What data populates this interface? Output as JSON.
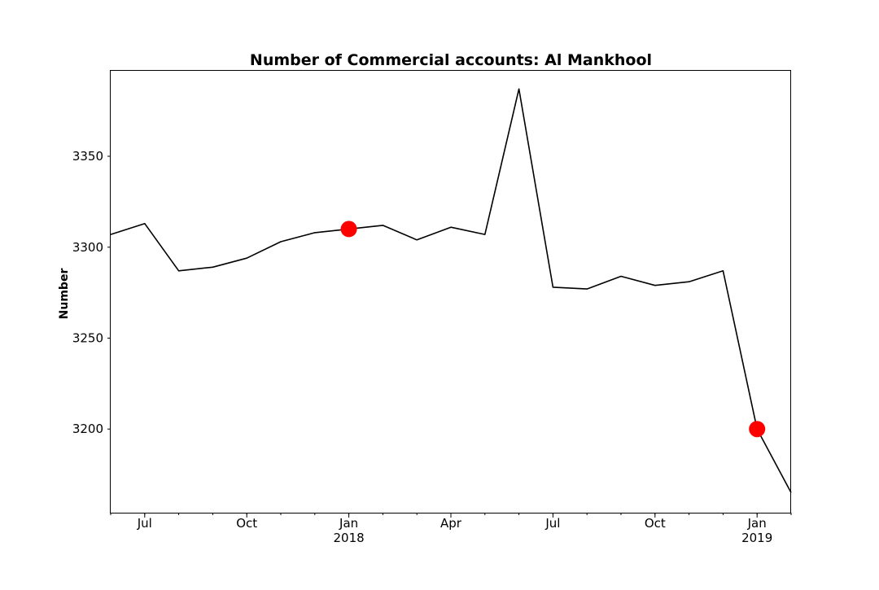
{
  "chart_data": {
    "type": "line",
    "title": "Number of Commercial accounts: Al Mankhool",
    "xlabel": "",
    "ylabel": "Number",
    "x": [
      "2017-06",
      "2017-07",
      "2017-08",
      "2017-09",
      "2017-10",
      "2017-11",
      "2017-12",
      "2018-01",
      "2018-02",
      "2018-03",
      "2018-04",
      "2018-05",
      "2018-06",
      "2018-07",
      "2018-08",
      "2018-09",
      "2018-10",
      "2018-11",
      "2018-12",
      "2019-01",
      "2019-02"
    ],
    "y": [
      3307,
      3313,
      3287,
      3289,
      3294,
      3303,
      3308,
      3310,
      3312,
      3304,
      3311,
      3307,
      3387,
      3278,
      3277,
      3284,
      3279,
      3281,
      3287,
      3200,
      3165
    ],
    "highlight_points": [
      {
        "x": "2018-01",
        "y": 3310
      },
      {
        "x": "2019-01",
        "y": 3200
      }
    ],
    "xlim": [
      "2017-06",
      "2019-02"
    ],
    "ylim": [
      3154,
      3397
    ],
    "yticks": [
      3200,
      3250,
      3300,
      3350
    ],
    "xticks": [
      {
        "x": "2017-07",
        "label": "Jul",
        "sublabel": ""
      },
      {
        "x": "2017-10",
        "label": "Oct",
        "sublabel": ""
      },
      {
        "x": "2018-01",
        "label": "Jan",
        "sublabel": "2018"
      },
      {
        "x": "2018-04",
        "label": "Apr",
        "sublabel": ""
      },
      {
        "x": "2018-07",
        "label": "Jul",
        "sublabel": ""
      },
      {
        "x": "2018-10",
        "label": "Oct",
        "sublabel": ""
      },
      {
        "x": "2019-01",
        "label": "Jan",
        "sublabel": "2019"
      }
    ],
    "line_color": "#000000",
    "highlight_color": "#ff0000",
    "grid": false,
    "legend": "none"
  }
}
